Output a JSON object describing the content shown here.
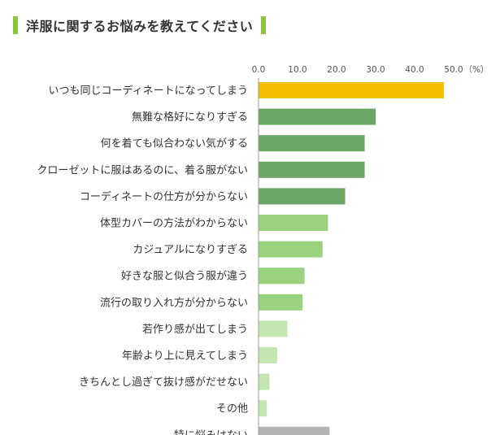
{
  "title": "洋服に関するお悩みを教えてください",
  "colors": {
    "accent": "#8cc63f",
    "highlight": "#f5c000",
    "dark_green": "#6aa765",
    "mid_green": "#9ad27f",
    "light_green": "#c4e6b0",
    "gray": "#b3b3b3",
    "axis": "#999999"
  },
  "chart_data": {
    "type": "bar",
    "orientation": "horizontal",
    "title": "洋服に関するお悩みを教えてください",
    "unit_label": "（%）",
    "xlim": [
      0,
      50
    ],
    "ticks": [
      "0.0",
      "10.0",
      "20.0",
      "30.0",
      "40.0",
      "50.0"
    ],
    "grid": false,
    "categories": [
      "いつも同じコーディネートになってしまう",
      "無難な格好になりすぎる",
      "何を着ても似合わない気がする",
      "クローゼットに服はあるのに、着る服がない",
      "コーディネートの仕方が分からない",
      "体型カバーの方法がわからない",
      "カジュアルになりすぎる",
      "好きな服と似合う服が違う",
      "流行の取り入れ方が分からない",
      "若作り感が出てしまう",
      "年齢より上に見えてしまう",
      "きちんとし過ぎて抜け感がだせない",
      "その他",
      "特に悩みはない"
    ],
    "values": [
      47.5,
      30.0,
      27.2,
      27.2,
      22.2,
      17.8,
      16.4,
      11.8,
      11.3,
      7.4,
      4.8,
      2.8,
      2.1,
      18.2
    ],
    "bar_colors": [
      "#f5c000",
      "#6aa765",
      "#6aa765",
      "#6aa765",
      "#6aa765",
      "#9ad27f",
      "#9ad27f",
      "#9ad27f",
      "#9ad27f",
      "#c4e6b0",
      "#c4e6b0",
      "#c4e6b0",
      "#c4e6b0",
      "#b3b3b3"
    ]
  }
}
